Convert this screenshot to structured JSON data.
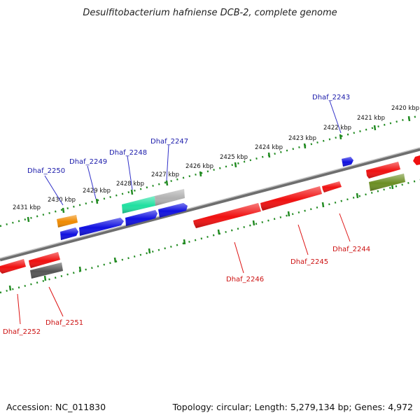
{
  "title": "Desulfitobacterium hafniense DCB-2, complete genome",
  "footer": {
    "accession": "Accession: NC_011830",
    "summary": "Topology: circular; Length: 5,279,134 bp; Genes: 4,972"
  },
  "ticks": [
    {
      "label": "2420 kbp"
    },
    {
      "label": "2421 kbp"
    },
    {
      "label": "2422 kbp"
    },
    {
      "label": "2423 kbp"
    },
    {
      "label": "2424 kbp"
    },
    {
      "label": "2425 kbp"
    },
    {
      "label": "2426 kbp"
    },
    {
      "label": "2427 kbp"
    },
    {
      "label": "2428 kbp"
    },
    {
      "label": "2429 kbp"
    },
    {
      "label": "2430 kbp"
    },
    {
      "label": "2431 kbp"
    }
  ],
  "gene_labels_top": [
    "Dhaf_2243",
    "Dhaf_2247",
    "Dhaf_2248",
    "Dhaf_2249",
    "Dhaf_2250"
  ],
  "gene_labels_bottom": [
    "Dhaf_2244",
    "Dhaf_2245",
    "Dhaf_2246",
    "Dhaf_2251",
    "Dhaf_2252"
  ],
  "colors": {
    "forward": "#1010e0",
    "reverse": "#f01010",
    "orange": "#f08a00",
    "teal": "#20e0a0",
    "olive": "#6b8e23",
    "gray": "#555555",
    "light_gray": "#b0b0b0",
    "tick_green": "#228b22",
    "backbone": "#8a8a8a"
  }
}
